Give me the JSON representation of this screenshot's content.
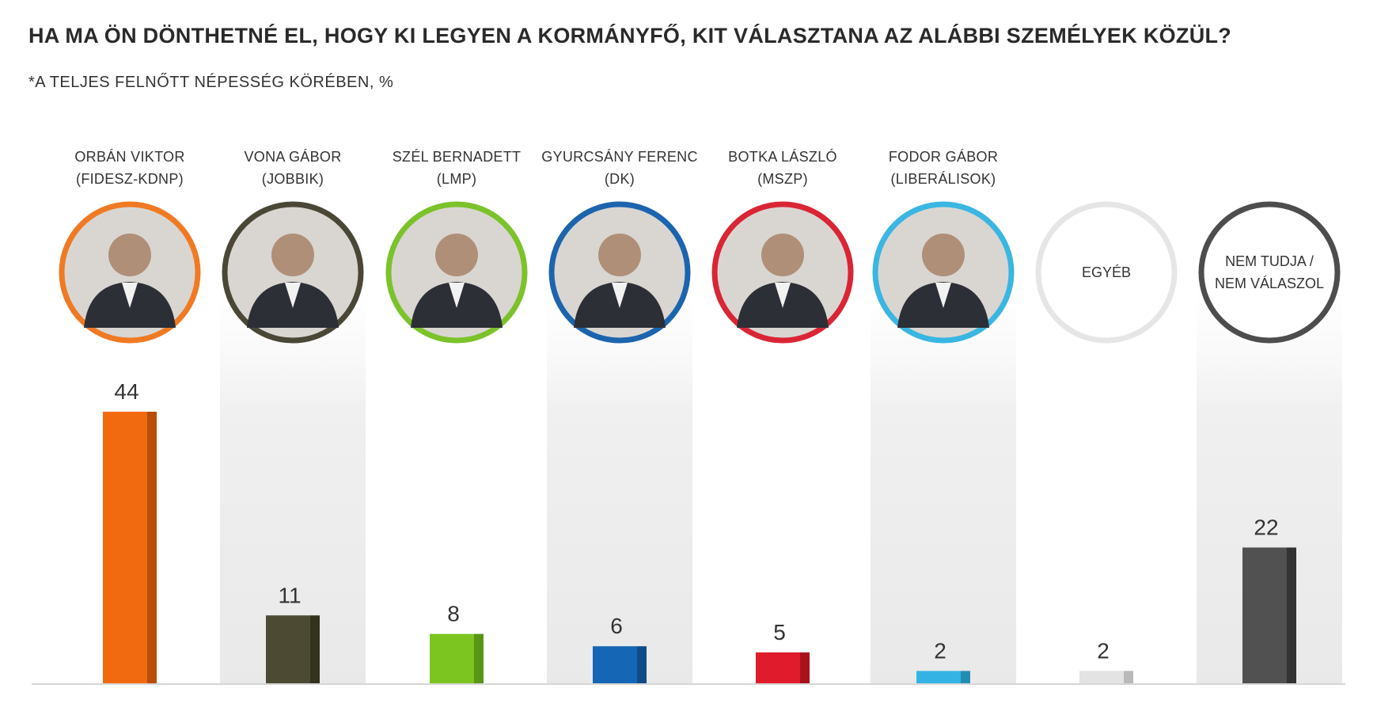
{
  "chart_data": {
    "type": "bar",
    "title": "HA MA ÖN DÖNTHETNÉ EL, HOGY KI LEGYEN A KORMÁNYFŐ, KIT VÁLASZTANA AZ ALÁBBI SZEMÉLYEK KÖZÜL?",
    "subtitle": "*A TELJES FELNŐTT NÉPESSÉG KÖRÉBEN, %",
    "xlabel": "",
    "ylabel": "",
    "ylim": [
      0,
      44
    ],
    "grid": false,
    "categories": [
      {
        "name": "ORBÁN VIKTOR",
        "party": "(FIDESZ-KDNP)",
        "color": "#f26a0f",
        "shade": "#b94d0a",
        "ring": "#f07a24",
        "photo": true
      },
      {
        "name": "VONA GÁBOR",
        "party": "(JOBBIK)",
        "color": "#4c4a33",
        "shade": "#33321f",
        "ring": "#4a4737",
        "photo": true
      },
      {
        "name": "SZÉL BERNADETT",
        "party": "(LMP)",
        "color": "#7cc520",
        "shade": "#5a9615",
        "ring": "#7cc22a",
        "photo": true
      },
      {
        "name": "GYURCSÁNY FERENC",
        "party": "(DK)",
        "color": "#1566b4",
        "shade": "#0e4c88",
        "ring": "#1c64ad",
        "photo": true
      },
      {
        "name": "BOTKA LÁSZLÓ",
        "party": "(MSZP)",
        "color": "#e01b2b",
        "shade": "#a8121f",
        "ring": "#d92535",
        "photo": true
      },
      {
        "name": "FODOR GÁBOR",
        "party": "(LIBERÁLISOK)",
        "color": "#33b4e4",
        "shade": "#238cb3",
        "ring": "#3ab6e2",
        "photo": true
      },
      {
        "name": "",
        "party": "",
        "circle_text": [
          "EGYÉB"
        ],
        "color": "#e3e3e3",
        "shade": "#b9b9b9",
        "ring": "#e6e6e6",
        "photo": false
      },
      {
        "name": "",
        "party": "",
        "circle_text": [
          "NEM TUDJA /",
          "NEM VÁLASZOL"
        ],
        "color": "#515151",
        "shade": "#333333",
        "ring": "#4d4d4d",
        "photo": false
      }
    ],
    "values": [
      44,
      11,
      8,
      6,
      5,
      2,
      2,
      22
    ]
  }
}
